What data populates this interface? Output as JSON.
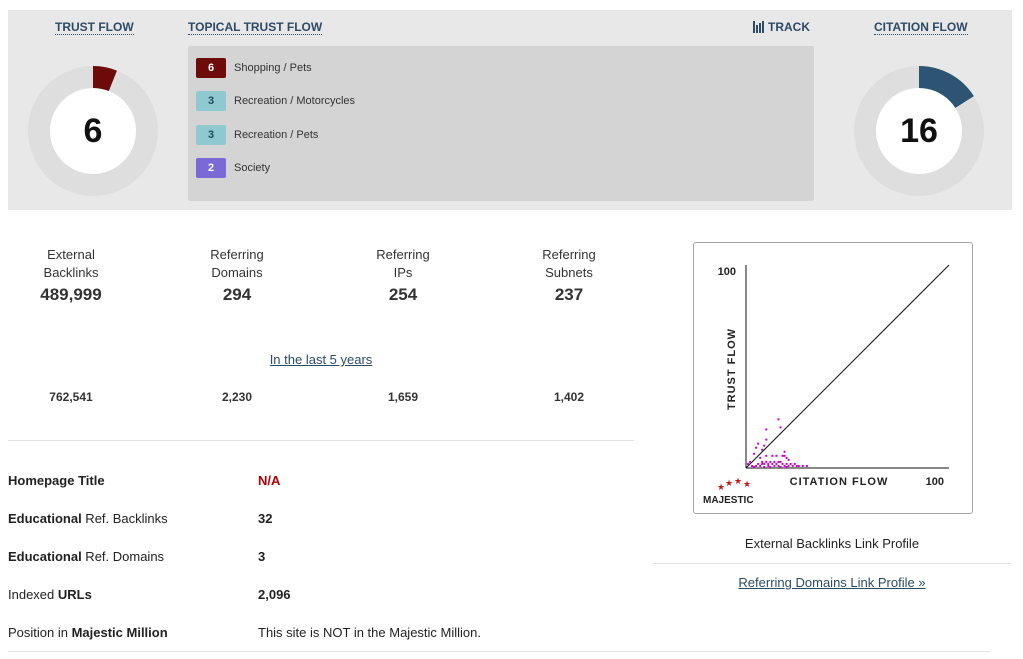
{
  "header": {
    "trust_flow_label": "TRUST FLOW",
    "topical_trust_flow_label": "TOPICAL TRUST FLOW",
    "track_label": "TRACK",
    "citation_flow_label": "CITATION FLOW"
  },
  "trust_flow": {
    "value": "6",
    "percent": 6,
    "color": "#6d0a0a"
  },
  "citation_flow": {
    "value": "16",
    "percent": 16,
    "color": "#2d5573"
  },
  "topical_trust_flow": [
    {
      "score": "6",
      "topic": "Shopping / Pets",
      "color": "#6d0a0a"
    },
    {
      "score": "3",
      "topic": "Recreation / Motorcycles",
      "color": "#8fc9cf"
    },
    {
      "score": "3",
      "topic": "Recreation / Pets",
      "color": "#8fc9cf"
    },
    {
      "score": "2",
      "topic": "Society",
      "color": "#7b6ad6"
    }
  ],
  "stats": [
    {
      "label1": "External",
      "label2": "Backlinks",
      "value": "489,999",
      "historic": "762,541"
    },
    {
      "label1": "Referring",
      "label2": "Domains",
      "value": "294",
      "historic": "2,230"
    },
    {
      "label1": "Referring",
      "label2": "IPs",
      "value": "254",
      "historic": "1,659"
    },
    {
      "label1": "Referring",
      "label2": "Subnets",
      "value": "237",
      "historic": "1,402"
    }
  ],
  "history_link": "In the last 5 years",
  "info": {
    "homepage_title_label": "Homepage Title",
    "homepage_title_value": "N/A",
    "edu_backlinks_bold": "Educational",
    "edu_backlinks_rest": " Ref. Backlinks",
    "edu_backlinks_value": "32",
    "edu_domains_bold": "Educational",
    "edu_domains_rest": " Ref. Domains",
    "edu_domains_value": "3",
    "indexed_urls_plain": "Indexed ",
    "indexed_urls_bold": "URLs",
    "indexed_urls_value": "2,096",
    "majestic_million_plain": "Position in ",
    "majestic_million_bold": "Majestic Million",
    "majestic_million_value": "This site is NOT in the Majestic Million."
  },
  "chart_data": {
    "type": "scatter",
    "xlabel": "CITATION FLOW",
    "ylabel": "TRUST FLOW",
    "xlim": [
      0,
      100
    ],
    "ylim": [
      0,
      100
    ],
    "x_max_label": "100",
    "y_max_label": "100",
    "logo_text": "MAJESTIC",
    "point_color": "#cc00cc",
    "points": [
      [
        16,
        24
      ],
      [
        17,
        20
      ],
      [
        10,
        19
      ],
      [
        10,
        14
      ],
      [
        6,
        12
      ],
      [
        9,
        11
      ],
      [
        5,
        10
      ],
      [
        8,
        9
      ],
      [
        4,
        7
      ],
      [
        13,
        6
      ],
      [
        15,
        6
      ],
      [
        18,
        6
      ],
      [
        19,
        6
      ],
      [
        20,
        5
      ],
      [
        10,
        6
      ],
      [
        7,
        5
      ],
      [
        8,
        3
      ],
      [
        10,
        3
      ],
      [
        12,
        3
      ],
      [
        14,
        3
      ],
      [
        16,
        3
      ],
      [
        17,
        3
      ],
      [
        6,
        2
      ],
      [
        8,
        2
      ],
      [
        9,
        2
      ],
      [
        11,
        2
      ],
      [
        13,
        2
      ],
      [
        15,
        2
      ],
      [
        18,
        2
      ],
      [
        20,
        2
      ],
      [
        22,
        2
      ],
      [
        24,
        2
      ],
      [
        26,
        1
      ],
      [
        28,
        1
      ],
      [
        3,
        1
      ],
      [
        5,
        1
      ],
      [
        7,
        1
      ],
      [
        11,
        1
      ],
      [
        14,
        1
      ],
      [
        16,
        1
      ],
      [
        19,
        1
      ],
      [
        21,
        1
      ],
      [
        23,
        1
      ],
      [
        25,
        1
      ],
      [
        4,
        0.5
      ],
      [
        9,
        0.5
      ],
      [
        12,
        0.5
      ],
      [
        17,
        0.5
      ],
      [
        20,
        0.5
      ],
      [
        30,
        1
      ],
      [
        2,
        3
      ],
      [
        1,
        2
      ],
      [
        19,
        8
      ],
      [
        21,
        4
      ]
    ],
    "caption": "External Backlinks Link Profile"
  },
  "referring_domains_link": "Referring Domains Link Profile »"
}
